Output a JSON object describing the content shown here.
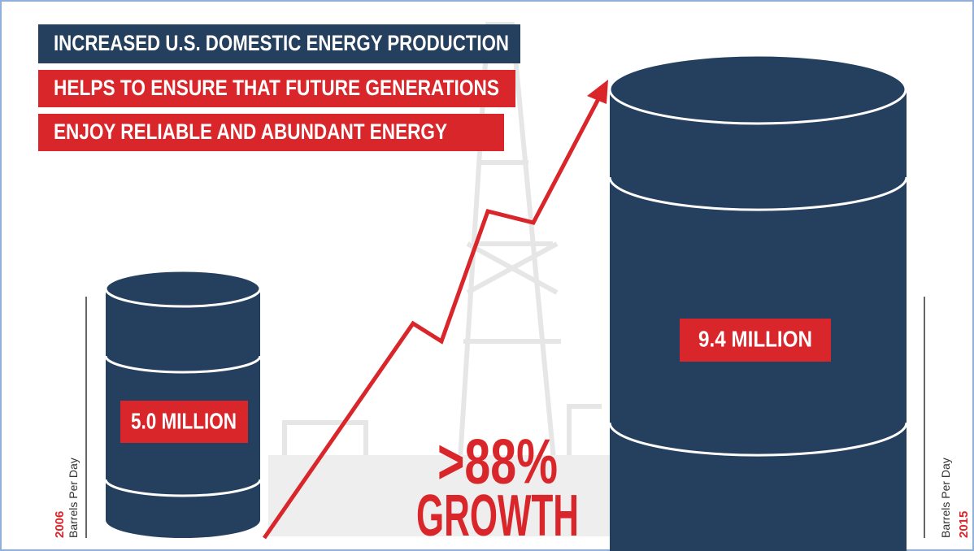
{
  "header": {
    "lines": [
      "INCREASED U.S. DOMESTIC ENERGY PRODUCTION",
      "HELPS TO ENSURE THAT FUTURE GENERATIONS",
      "ENJOY RELIABLE AND ABUNDANT ENERGY"
    ]
  },
  "barrels": [
    {
      "year": "2006",
      "unit": "Barrels Per Day",
      "label": "5.0 MILLION"
    },
    {
      "year": "2015",
      "unit": "Barrels Per Day",
      "label": "9.4 MILLION"
    }
  ],
  "growth": {
    "percent": ">88%",
    "label": "GROWTH"
  }
}
